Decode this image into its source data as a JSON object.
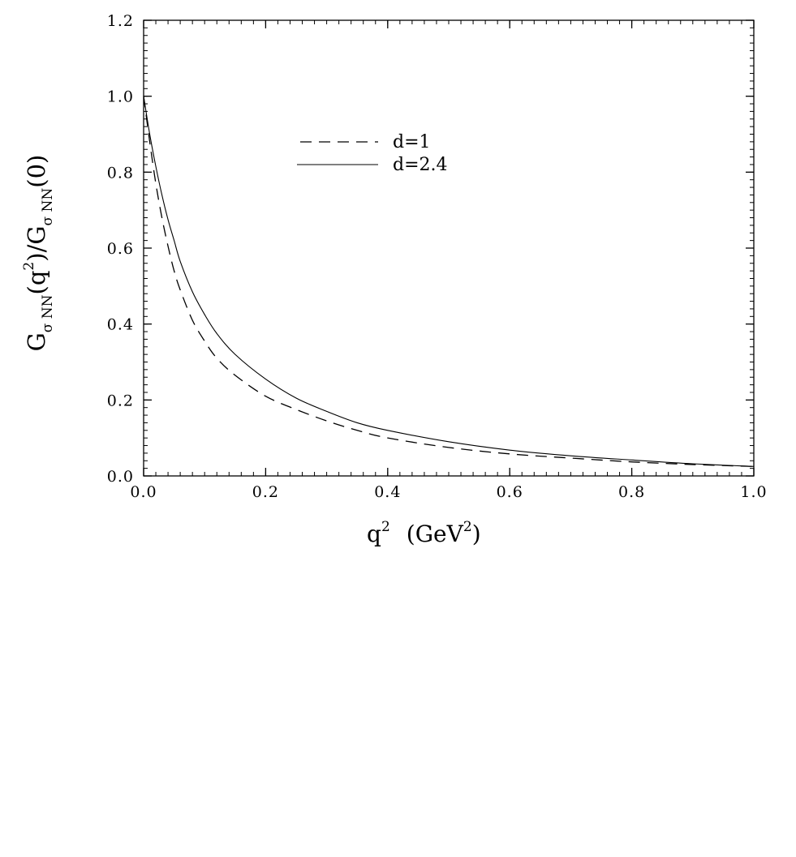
{
  "chart_data": {
    "type": "line",
    "xlabel": {
      "base": "q",
      "sup": "2",
      "unit_open": "(GeV",
      "unit_sup": "2",
      "unit_close": ")"
    },
    "ylabel": {
      "g1": "G",
      "sub1": "σ NN",
      "p1": "(q",
      "sup": "2",
      "p2": ")/G",
      "sub2": "σ NN",
      "p3": "(0)"
    },
    "xlim": [
      0.0,
      1.0
    ],
    "ylim": [
      0.0,
      1.2
    ],
    "x_ticks": [
      "0.0",
      "0.2",
      "0.4",
      "0.6",
      "0.8",
      "1.0"
    ],
    "y_ticks": [
      "0.0",
      "0.2",
      "0.4",
      "0.6",
      "0.8",
      "1.0",
      "1.2"
    ],
    "legend": [
      "d=1",
      "d=2.4"
    ],
    "legend_position": "upper-middle",
    "grid": false,
    "series": [
      {
        "name": "d=1",
        "style": "dashed",
        "x": [
          0.0,
          0.01,
          0.02,
          0.03,
          0.04,
          0.05,
          0.06,
          0.08,
          0.1,
          0.12,
          0.15,
          0.2,
          0.25,
          0.3,
          0.35,
          0.4,
          0.5,
          0.6,
          0.7,
          0.8,
          0.9,
          1.0
        ],
        "y": [
          1.0,
          0.88,
          0.77,
          0.68,
          0.605,
          0.54,
          0.49,
          0.41,
          0.355,
          0.31,
          0.265,
          0.21,
          0.175,
          0.145,
          0.12,
          0.1,
          0.075,
          0.058,
          0.047,
          0.037,
          0.03,
          0.025
        ]
      },
      {
        "name": "d=2.4",
        "style": "solid",
        "x": [
          0.0,
          0.01,
          0.02,
          0.03,
          0.04,
          0.05,
          0.06,
          0.08,
          0.1,
          0.12,
          0.15,
          0.2,
          0.25,
          0.3,
          0.35,
          0.4,
          0.5,
          0.6,
          0.7,
          0.8,
          0.9,
          1.0
        ],
        "y": [
          1.0,
          0.9,
          0.815,
          0.74,
          0.675,
          0.62,
          0.565,
          0.485,
          0.425,
          0.375,
          0.32,
          0.255,
          0.205,
          0.17,
          0.14,
          0.12,
          0.09,
          0.068,
          0.053,
          0.042,
          0.032,
          0.025
        ]
      }
    ]
  }
}
